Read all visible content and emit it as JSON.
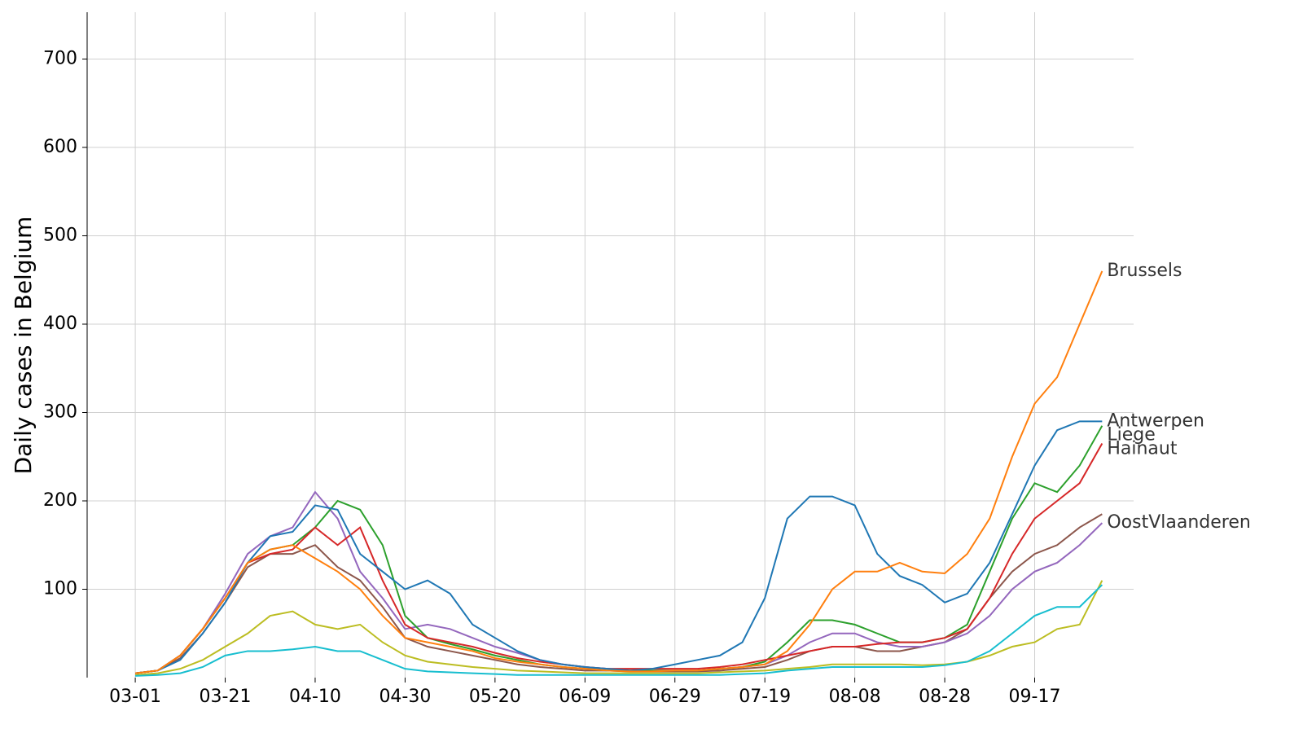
{
  "chart_data": {
    "type": "line",
    "ylabel": "Daily cases in Belgium",
    "x": [
      0,
      5,
      10,
      15,
      20,
      25,
      30,
      35,
      40,
      45,
      50,
      55,
      60,
      65,
      70,
      75,
      80,
      85,
      90,
      95,
      100,
      105,
      110,
      115,
      120,
      125,
      130,
      135,
      140,
      145,
      150,
      155,
      160,
      165,
      170,
      175,
      180,
      185,
      190,
      195,
      200,
      205,
      210,
      215
    ],
    "xlim": [
      -10.7,
      222
    ],
    "xticks": [
      {
        "value": 0,
        "label": "03-01"
      },
      {
        "value": 20,
        "label": "03-21"
      },
      {
        "value": 40,
        "label": "04-10"
      },
      {
        "value": 60,
        "label": "04-30"
      },
      {
        "value": 80,
        "label": "05-20"
      },
      {
        "value": 100,
        "label": "06-09"
      },
      {
        "value": 120,
        "label": "06-29"
      },
      {
        "value": 140,
        "label": "07-19"
      },
      {
        "value": 160,
        "label": "08-08"
      },
      {
        "value": 180,
        "label": "08-28"
      },
      {
        "value": 200,
        "label": "09-17"
      }
    ],
    "ylim": [
      0,
      753
    ],
    "yticks": [
      100,
      200,
      300,
      400,
      500,
      600,
      700
    ],
    "grid": true,
    "series": [
      {
        "color": "#bcbd22",
        "values": [
          3,
          5,
          10,
          20,
          35,
          50,
          70,
          75,
          60,
          55,
          60,
          40,
          25,
          18,
          15,
          12,
          10,
          8,
          7,
          6,
          5,
          5,
          5,
          5,
          5,
          5,
          6,
          7,
          8,
          10,
          12,
          15,
          15,
          15,
          15,
          14,
          15,
          18,
          25,
          35,
          40,
          55,
          60,
          110
        ]
      },
      {
        "color": "#17becf",
        "values": [
          2,
          3,
          5,
          12,
          25,
          30,
          30,
          32,
          35,
          30,
          30,
          20,
          10,
          7,
          6,
          5,
          4,
          3,
          3,
          3,
          3,
          3,
          3,
          3,
          3,
          3,
          3,
          4,
          5,
          8,
          10,
          12,
          12,
          12,
          12,
          12,
          14,
          18,
          30,
          50,
          70,
          80,
          80,
          105
        ]
      },
      {
        "color": "#8c564b",
        "values": [
          5,
          8,
          22,
          50,
          85,
          125,
          140,
          140,
          150,
          125,
          110,
          80,
          45,
          35,
          30,
          25,
          20,
          15,
          12,
          10,
          8,
          8,
          7,
          7,
          7,
          7,
          8,
          10,
          12,
          20,
          30,
          35,
          35,
          30,
          30,
          35,
          40,
          55,
          90,
          120,
          140,
          150,
          170,
          185
        ]
      },
      {
        "name": "OostVlaanderen",
        "color": "#9467bd",
        "values": [
          5,
          8,
          25,
          55,
          95,
          140,
          160,
          170,
          210,
          180,
          120,
          90,
          55,
          60,
          55,
          45,
          35,
          28,
          20,
          15,
          12,
          10,
          8,
          8,
          8,
          8,
          10,
          12,
          15,
          25,
          40,
          50,
          50,
          40,
          35,
          35,
          40,
          50,
          70,
          100,
          120,
          130,
          150,
          175
        ]
      },
      {
        "name": "Liege",
        "color": "#2ca02c",
        "values": [
          5,
          8,
          25,
          55,
          90,
          130,
          145,
          150,
          170,
          200,
          190,
          150,
          70,
          45,
          38,
          32,
          25,
          20,
          15,
          12,
          10,
          8,
          8,
          8,
          8,
          8,
          10,
          12,
          18,
          40,
          65,
          65,
          60,
          50,
          40,
          40,
          45,
          60,
          120,
          180,
          220,
          210,
          240,
          285
        ]
      },
      {
        "name": "Hainaut",
        "color": "#d62728",
        "values": [
          5,
          8,
          25,
          55,
          90,
          130,
          140,
          145,
          170,
          150,
          170,
          110,
          60,
          45,
          40,
          35,
          28,
          22,
          18,
          15,
          12,
          10,
          10,
          10,
          10,
          10,
          12,
          15,
          20,
          25,
          30,
          35,
          35,
          38,
          40,
          40,
          45,
          55,
          90,
          140,
          180,
          200,
          220,
          265
        ]
      },
      {
        "name": "Antwerpen",
        "color": "#1f77b4",
        "values": [
          5,
          8,
          20,
          50,
          85,
          130,
          160,
          165,
          195,
          190,
          140,
          120,
          100,
          110,
          95,
          60,
          45,
          30,
          20,
          15,
          12,
          10,
          8,
          10,
          15,
          20,
          25,
          40,
          90,
          180,
          205,
          205,
          195,
          140,
          115,
          105,
          85,
          95,
          130,
          185,
          240,
          280,
          290,
          290
        ]
      },
      {
        "name": "Brussels",
        "color": "#ff7f0e",
        "values": [
          5,
          8,
          25,
          55,
          90,
          130,
          145,
          150,
          135,
          120,
          100,
          70,
          45,
          40,
          35,
          30,
          22,
          18,
          15,
          12,
          10,
          8,
          7,
          7,
          8,
          8,
          10,
          12,
          15,
          30,
          60,
          100,
          120,
          120,
          130,
          120,
          118,
          140,
          180,
          250,
          310,
          340,
          400,
          460
        ]
      }
    ]
  }
}
